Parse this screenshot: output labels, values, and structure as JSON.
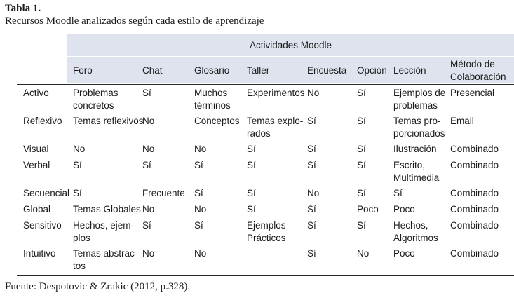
{
  "caption": {
    "title": "Tabla 1.",
    "subtitle": "Recursos Moodle analizados según cada estilo de aprendizaje"
  },
  "table": {
    "group_header": "Actividades Moodle",
    "columns": [
      "Foro",
      "Chat",
      "Glosario",
      "Taller",
      "Encuesta",
      "Opción",
      "Lección",
      "Método de\nColaboración"
    ],
    "rows": [
      {
        "label": "Activo",
        "cells": [
          "Problemas\nconcretos",
          "Sí",
          "Muchos\ntérminos",
          "Experimentos",
          "No",
          "Sí",
          "Ejemplos de\nproblemas",
          "Presencial"
        ]
      },
      {
        "label": "Reflexivo",
        "cells": [
          "Temas reflexivos",
          "No",
          "Conceptos",
          "Temas explo-\nrados",
          "Sí",
          "Sí",
          "Temas pro-\nporcionados",
          "Email"
        ]
      },
      {
        "label": "Visual",
        "cells": [
          "No",
          "No",
          "No",
          "Sí",
          "Sí",
          "Sí",
          "Ilustración",
          "Combinado"
        ]
      },
      {
        "label": "Verbal",
        "cells": [
          "Sí",
          "Sí",
          "Sí",
          "Sí",
          "Sí",
          "Sí",
          "Escrito,\nMultimedia",
          "Combinado"
        ]
      },
      {
        "label": "Secuencial",
        "cells": [
          "Sí",
          "Frecuente",
          "Sí",
          "Sí",
          "No",
          "Sí",
          "Sí",
          "Combinado"
        ]
      },
      {
        "label": "Global",
        "cells": [
          "Temas Globales",
          "No",
          "No",
          "Sí",
          "Sí",
          "Poco",
          "Poco",
          "Combinado"
        ]
      },
      {
        "label": "Sensitivo",
        "cells": [
          "Hechos, ejem-\nplos",
          "Sí",
          "Sí",
          "Ejemplos\nPrácticos",
          "Sí",
          "Sí",
          "Hechos,\nAlgoritmos",
          "Combinado"
        ]
      },
      {
        "label": "Intuitivo",
        "cells": [
          "Temas abstrac-\ntos",
          "No",
          "No",
          "",
          "Sí",
          "No",
          "Poco",
          "Combinado"
        ]
      }
    ]
  },
  "source": "Fuente: Despotovic & Zrakic (2012, p.328)."
}
